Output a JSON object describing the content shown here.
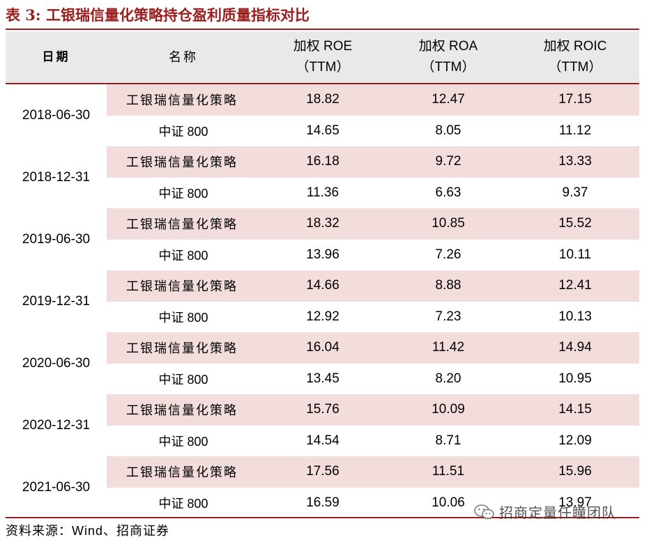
{
  "title": "表 3:  工银瑞信量化策略持仓盈利质量指标对比",
  "header": {
    "date": "日期",
    "name": "名称",
    "roe_line1": "加权 ROE",
    "roe_line2": "（TTM）",
    "roa_line1": "加权 ROA",
    "roa_line2": "（TTM）",
    "roic_line1": "加权 ROIC",
    "roic_line2": "（TTM）"
  },
  "dates": [
    "2018-06-30",
    "2018-12-31",
    "2019-06-30",
    "2019-12-31",
    "2020-06-30",
    "2020-12-31",
    "2021-06-30"
  ],
  "rows": [
    {
      "name": "工银瑞信量化策略",
      "roe": "18.82",
      "roa": "12.47",
      "roic": "17.15"
    },
    {
      "name": "中证 800",
      "roe": "14.65",
      "roa": "8.05",
      "roic": "11.12"
    },
    {
      "name": "工银瑞信量化策略",
      "roe": "16.18",
      "roa": "9.72",
      "roic": "13.33"
    },
    {
      "name": "中证 800",
      "roe": "11.36",
      "roa": "6.63",
      "roic": "9.37"
    },
    {
      "name": "工银瑞信量化策略",
      "roe": "18.32",
      "roa": "10.85",
      "roic": "15.52"
    },
    {
      "name": "中证 800",
      "roe": "13.96",
      "roa": "7.26",
      "roic": "10.11"
    },
    {
      "name": "工银瑞信量化策略",
      "roe": "14.66",
      "roa": "8.88",
      "roic": "12.41"
    },
    {
      "name": "中证 800",
      "roe": "12.92",
      "roa": "7.23",
      "roic": "10.13"
    },
    {
      "name": "工银瑞信量化策略",
      "roe": "16.04",
      "roa": "11.42",
      "roic": "14.94"
    },
    {
      "name": "中证 800",
      "roe": "13.45",
      "roa": "8.20",
      "roic": "10.95"
    },
    {
      "name": "工银瑞信量化策略",
      "roe": "15.76",
      "roa": "10.09",
      "roic": "14.15"
    },
    {
      "name": "中证 800",
      "roe": "14.54",
      "roa": "8.71",
      "roic": "12.09"
    },
    {
      "name": "工银瑞信量化策略",
      "roe": "17.56",
      "roa": "11.51",
      "roic": "15.96"
    },
    {
      "name": "中证 800",
      "roe": "16.59",
      "roa": "10.06",
      "roic": "13.97"
    }
  ],
  "source": "资料来源：Wind、招商证券",
  "watermark": "招商定量任瞳团队",
  "colors": {
    "accent": "#9b1c1c",
    "header_bg": "#e9e9e9",
    "strategy_row_bg": "#f3dcdc"
  }
}
